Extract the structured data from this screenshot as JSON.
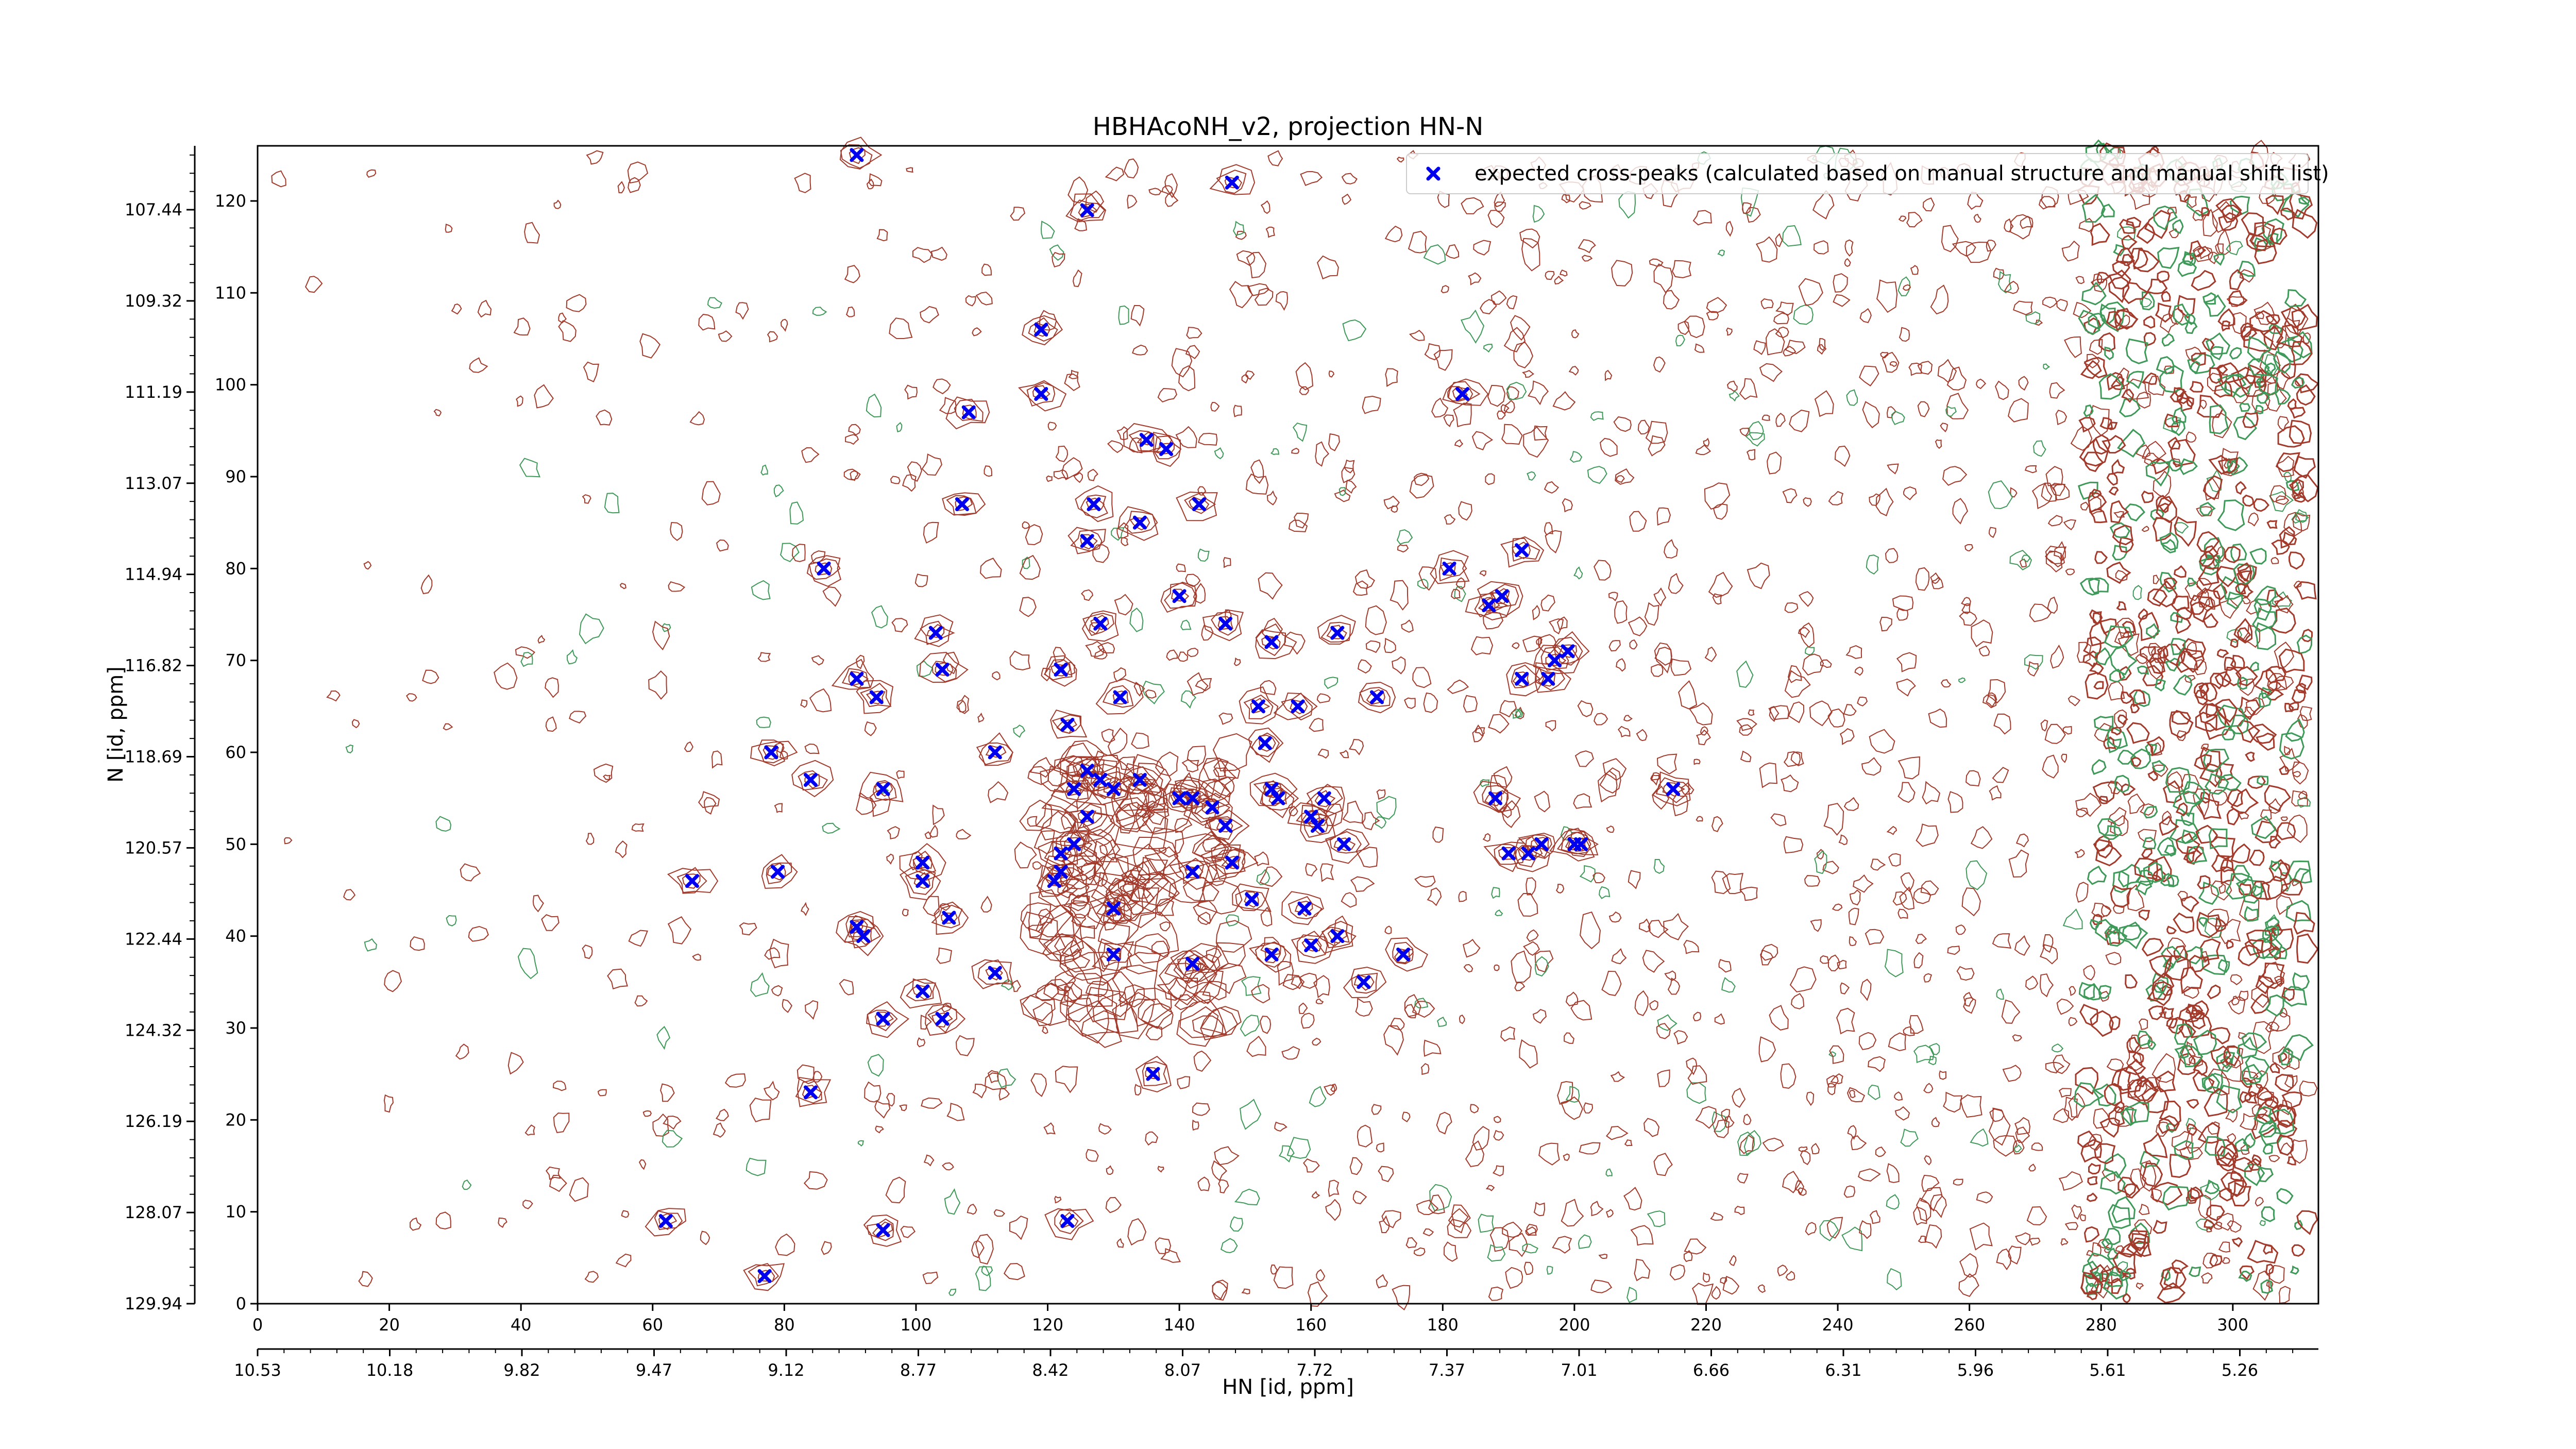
{
  "chart_data": {
    "type": "scatter",
    "title": "HBHAcoNH_v2, projection HN-N",
    "xlabel": "HN [id, ppm]",
    "ylabel": "N [id, ppm]",
    "x_index_range": [
      0,
      313
    ],
    "y_index_range": [
      0,
      126
    ],
    "x_index_ticks": [
      "0",
      "20",
      "40",
      "60",
      "80",
      "100",
      "120",
      "140",
      "160",
      "180",
      "200",
      "220",
      "240",
      "260",
      "280",
      "300"
    ],
    "y_index_ticks": [
      "0",
      "10",
      "20",
      "30",
      "40",
      "50",
      "60",
      "70",
      "80",
      "90",
      "100",
      "110",
      "120"
    ],
    "x_ppm_ticks": [
      "10.53",
      "10.18",
      "9.82",
      "9.47",
      "9.12",
      "8.77",
      "8.42",
      "8.07",
      "7.72",
      "7.37",
      "7.01",
      "6.66",
      "6.31",
      "5.96",
      "5.61",
      "5.26"
    ],
    "y_ppm_ticks": [
      "129.94",
      "128.07",
      "126.19",
      "124.32",
      "122.44",
      "120.57",
      "118.69",
      "116.82",
      "114.94",
      "113.07",
      "111.19",
      "109.32",
      "107.44"
    ],
    "contour_colors": {
      "positive": "#a33b2c",
      "negative": "#3f9a5a"
    },
    "series": [
      {
        "name": "expected cross-peaks (calculated based on manual structure and manual shift list)",
        "color": "#0000ee",
        "marker": "x",
        "points": [
          [
            91,
            125
          ],
          [
            148,
            122
          ],
          [
            126,
            119
          ],
          [
            119,
            106
          ],
          [
            119,
            99
          ],
          [
            108,
            97
          ],
          [
            183,
            99
          ],
          [
            135,
            94
          ],
          [
            138,
            93
          ],
          [
            107,
            87
          ],
          [
            127,
            87
          ],
          [
            143,
            87
          ],
          [
            134,
            85
          ],
          [
            126,
            83
          ],
          [
            192,
            82
          ],
          [
            86,
            80
          ],
          [
            181,
            80
          ],
          [
            140,
            77
          ],
          [
            189,
            77
          ],
          [
            187,
            76
          ],
          [
            128,
            74
          ],
          [
            147,
            74
          ],
          [
            103,
            73
          ],
          [
            164,
            73
          ],
          [
            154,
            72
          ],
          [
            199,
            71
          ],
          [
            197,
            70
          ],
          [
            104,
            69
          ],
          [
            122,
            69
          ],
          [
            91,
            68
          ],
          [
            192,
            68
          ],
          [
            196,
            68
          ],
          [
            94,
            66
          ],
          [
            131,
            66
          ],
          [
            170,
            66
          ],
          [
            152,
            65
          ],
          [
            158,
            65
          ],
          [
            123,
            63
          ],
          [
            153,
            61
          ],
          [
            78,
            60
          ],
          [
            112,
            60
          ],
          [
            126,
            58
          ],
          [
            128,
            57
          ],
          [
            84,
            57
          ],
          [
            95,
            56
          ],
          [
            154,
            56
          ],
          [
            124,
            56
          ],
          [
            130,
            56
          ],
          [
            134,
            57
          ],
          [
            155,
            55
          ],
          [
            140,
            55
          ],
          [
            142,
            55
          ],
          [
            162,
            55
          ],
          [
            188,
            55
          ],
          [
            215,
            56
          ],
          [
            145,
            54
          ],
          [
            126,
            53
          ],
          [
            160,
            53
          ],
          [
            161,
            52
          ],
          [
            147,
            52
          ],
          [
            124,
            50
          ],
          [
            165,
            50
          ],
          [
            190,
            49
          ],
          [
            193,
            49
          ],
          [
            195,
            50
          ],
          [
            201,
            50
          ],
          [
            200,
            50
          ],
          [
            122,
            49
          ],
          [
            122,
            47
          ],
          [
            101,
            48
          ],
          [
            148,
            48
          ],
          [
            79,
            47
          ],
          [
            142,
            47
          ],
          [
            66,
            46
          ],
          [
            121,
            46
          ],
          [
            101,
            46
          ],
          [
            151,
            44
          ],
          [
            130,
            43
          ],
          [
            159,
            43
          ],
          [
            105,
            42
          ],
          [
            91,
            41
          ],
          [
            92,
            40
          ],
          [
            164,
            40
          ],
          [
            160,
            39
          ],
          [
            130,
            38
          ],
          [
            174,
            38
          ],
          [
            154,
            38
          ],
          [
            142,
            37
          ],
          [
            112,
            36
          ],
          [
            168,
            35
          ],
          [
            101,
            34
          ],
          [
            104,
            31
          ],
          [
            95,
            31
          ],
          [
            136,
            25
          ],
          [
            84,
            23
          ],
          [
            62,
            9
          ],
          [
            123,
            9
          ],
          [
            95,
            8
          ],
          [
            77,
            3
          ]
        ]
      }
    ]
  }
}
